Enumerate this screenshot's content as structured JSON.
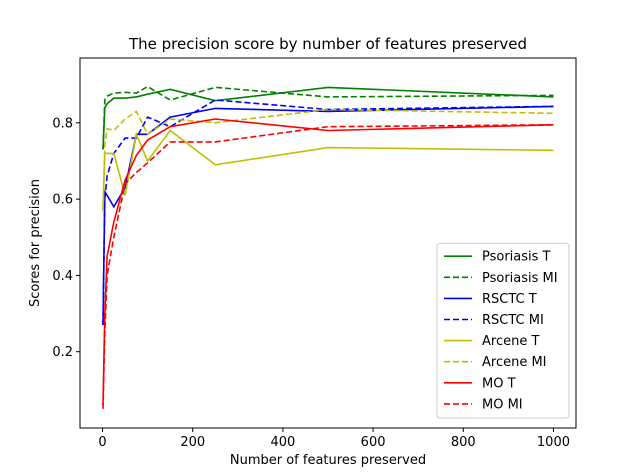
{
  "chart_data": {
    "type": "line",
    "title": "The precision score by number of features preserved",
    "xlabel": "Number of features preserved",
    "ylabel": "Scores for precision",
    "xlim": [
      -50,
      1050
    ],
    "ylim": [
      0.0,
      0.97
    ],
    "xticks": [
      0,
      200,
      400,
      600,
      800,
      1000
    ],
    "yticks": [
      0.2,
      0.4,
      0.6,
      0.8
    ],
    "xtick_labels": [
      "0",
      "200",
      "400",
      "600",
      "800",
      "1000"
    ],
    "ytick_labels": [
      "0.2",
      "0.4",
      "0.6",
      "0.8"
    ],
    "grid": false,
    "legend_position": "lower-right",
    "series": [
      {
        "name": "Psoriasis T",
        "color": "#008000",
        "dashed": false,
        "x": [
          1,
          5,
          10,
          25,
          50,
          75,
          100,
          150,
          250,
          500,
          1000
        ],
        "y": [
          0.73,
          0.84,
          0.85,
          0.865,
          0.865,
          0.868,
          0.875,
          0.888,
          0.858,
          0.893,
          0.868
        ]
      },
      {
        "name": "Psoriasis MI",
        "color": "#008000",
        "dashed": true,
        "x": [
          1,
          5,
          10,
          25,
          50,
          75,
          100,
          150,
          250,
          500,
          1000
        ],
        "y": [
          0.73,
          0.86,
          0.87,
          0.878,
          0.88,
          0.878,
          0.895,
          0.86,
          0.893,
          0.868,
          0.872
        ]
      },
      {
        "name": "RSCTC T",
        "color": "#0000ff",
        "dashed": false,
        "x": [
          1,
          5,
          10,
          25,
          50,
          75,
          100,
          150,
          250,
          500,
          1000
        ],
        "y": [
          0.27,
          0.62,
          0.61,
          0.58,
          0.63,
          0.77,
          0.77,
          0.815,
          0.838,
          0.83,
          0.843
        ]
      },
      {
        "name": "RSCTC MI",
        "color": "#0000ff",
        "dashed": true,
        "x": [
          1,
          5,
          10,
          25,
          50,
          75,
          100,
          150,
          250,
          500,
          1000
        ],
        "y": [
          0.27,
          0.6,
          0.66,
          0.72,
          0.76,
          0.76,
          0.815,
          0.79,
          0.86,
          0.835,
          0.843
        ]
      },
      {
        "name": "Arcene T",
        "color": "#bfbf00",
        "dashed": false,
        "x": [
          1,
          5,
          10,
          25,
          50,
          75,
          100,
          150,
          250,
          500,
          1000
        ],
        "y": [
          0.57,
          0.72,
          0.72,
          0.72,
          0.61,
          0.77,
          0.7,
          0.78,
          0.69,
          0.735,
          0.728
        ]
      },
      {
        "name": "Arcene MI",
        "color": "#bfbf00",
        "dashed": true,
        "x": [
          1,
          5,
          10,
          25,
          50,
          75,
          100,
          150,
          250,
          500,
          1000
        ],
        "y": [
          0.57,
          0.74,
          0.785,
          0.78,
          0.81,
          0.83,
          0.77,
          0.81,
          0.8,
          0.835,
          0.825
        ]
      },
      {
        "name": "MO T",
        "color": "#ff0000",
        "dashed": false,
        "x": [
          1,
          5,
          10,
          25,
          50,
          75,
          100,
          150,
          250,
          500,
          1000
        ],
        "y": [
          0.06,
          0.3,
          0.45,
          0.54,
          0.65,
          0.715,
          0.755,
          0.79,
          0.81,
          0.78,
          0.795
        ]
      },
      {
        "name": "MO MI",
        "color": "#ff0000",
        "dashed": true,
        "x": [
          1,
          5,
          10,
          25,
          50,
          75,
          100,
          150,
          250,
          500,
          1000
        ],
        "y": [
          0.05,
          0.25,
          0.4,
          0.5,
          0.64,
          0.67,
          0.695,
          0.75,
          0.75,
          0.79,
          0.795
        ]
      }
    ]
  }
}
